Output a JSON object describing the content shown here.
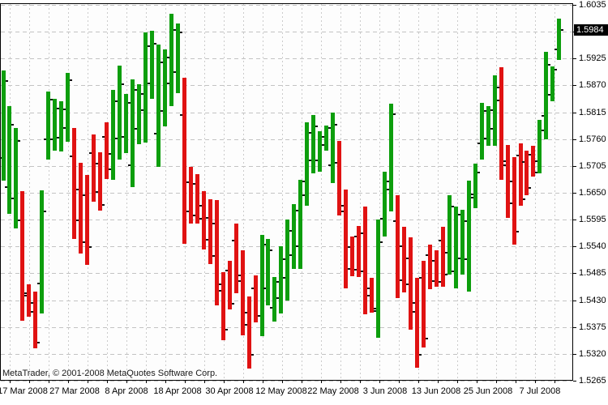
{
  "watermark": "MetaTrader, © 2001-2008 MetaQuotes Software Corp.",
  "price_axis": {
    "side": "right",
    "current_price": "1.5984",
    "current_price_value": 1.5984,
    "max": 1.6035,
    "min": 1.5265,
    "step": 0.0055,
    "gridline_levels": [
      1.6035,
      1.598,
      1.5925,
      1.587,
      1.5815,
      1.576,
      1.5705,
      1.565,
      1.5595,
      1.554,
      1.5485,
      1.543,
      1.5375,
      1.532,
      1.5265
    ],
    "visible_labels": [
      "1.6035",
      "1.5925",
      "1.5870",
      "1.5815",
      "1.5760",
      "1.5705",
      "1.5650",
      "1.5595",
      "1.5540",
      "1.5485",
      "1.5430",
      "1.5375",
      "1.5320",
      "1.5265"
    ]
  },
  "time_axis": {
    "labels": [
      {
        "text": "17 Mar 2008",
        "bar_index": 3
      },
      {
        "text": "27 Mar 2008",
        "bar_index": 11
      },
      {
        "text": "8 Apr 2008",
        "bar_index": 19
      },
      {
        "text": "18 Apr 2008",
        "bar_index": 27
      },
      {
        "text": "30 Apr 2008",
        "bar_index": 35
      },
      {
        "text": "12 May 2008",
        "bar_index": 43
      },
      {
        "text": "22 May 2008",
        "bar_index": 51
      },
      {
        "text": "3 Jun 2008",
        "bar_index": 59
      },
      {
        "text": "13 Jun 2008",
        "bar_index": 67
      },
      {
        "text": "25 Jun 2008",
        "bar_index": 75
      },
      {
        "text": "7 Jul 2008",
        "bar_index": 83
      }
    ]
  },
  "chart_data": {
    "type": "bar",
    "subtype": "ohlc-bars",
    "up_color": "#0d9e0d",
    "down_color": "#e01212",
    "grid": true,
    "legend": false,
    "ylim": [
      1.5265,
      1.6035
    ],
    "columns": [
      "high",
      "low",
      "direction"
    ],
    "bars": [
      [
        1.5901,
        1.5676,
        "up"
      ],
      [
        1.5827,
        1.5607,
        "up"
      ],
      [
        1.5782,
        1.5577,
        "up"
      ],
      [
        1.5653,
        1.5387,
        "down"
      ],
      [
        1.5462,
        1.5396,
        "down"
      ],
      [
        1.5447,
        1.5331,
        "down"
      ],
      [
        1.5655,
        1.5402,
        "up"
      ],
      [
        1.5858,
        1.5719,
        "up"
      ],
      [
        1.5843,
        1.5736,
        "up"
      ],
      [
        1.5837,
        1.5734,
        "up"
      ],
      [
        1.5895,
        1.5754,
        "up"
      ],
      [
        1.5782,
        1.5554,
        "down"
      ],
      [
        1.5711,
        1.5525,
        "down"
      ],
      [
        1.5687,
        1.5503,
        "down"
      ],
      [
        1.5769,
        1.5632,
        "down"
      ],
      [
        1.5733,
        1.5614,
        "down"
      ],
      [
        1.5794,
        1.5678,
        "down"
      ],
      [
        1.586,
        1.5675,
        "up"
      ],
      [
        1.5911,
        1.5718,
        "up"
      ],
      [
        1.5852,
        1.5731,
        "up"
      ],
      [
        1.5883,
        1.5663,
        "up"
      ],
      [
        1.5873,
        1.5751,
        "up"
      ],
      [
        1.5979,
        1.5753,
        "up"
      ],
      [
        1.5982,
        1.5842,
        "up"
      ],
      [
        1.5954,
        1.5703,
        "up"
      ],
      [
        1.5943,
        1.5786,
        "up"
      ],
      [
        1.6017,
        1.5827,
        "up"
      ],
      [
        1.5997,
        1.5855,
        "up"
      ],
      [
        1.5886,
        1.5546,
        "down"
      ],
      [
        1.5703,
        1.5587,
        "down"
      ],
      [
        1.5688,
        1.5587,
        "down"
      ],
      [
        1.5653,
        1.5533,
        "down"
      ],
      [
        1.5637,
        1.5505,
        "down"
      ],
      [
        1.5635,
        1.542,
        "down"
      ],
      [
        1.5488,
        1.5348,
        "down"
      ],
      [
        1.5511,
        1.5412,
        "down"
      ],
      [
        1.5587,
        1.5445,
        "down"
      ],
      [
        1.5533,
        1.5358,
        "down"
      ],
      [
        1.5437,
        1.529,
        "down"
      ],
      [
        1.548,
        1.5384,
        "down"
      ],
      [
        1.5564,
        1.5356,
        "up"
      ],
      [
        1.5556,
        1.542,
        "up"
      ],
      [
        1.5478,
        1.5387,
        "up"
      ],
      [
        1.5541,
        1.5404,
        "up"
      ],
      [
        1.5596,
        1.543,
        "up"
      ],
      [
        1.5627,
        1.5495,
        "up"
      ],
      [
        1.5677,
        1.5495,
        "up"
      ],
      [
        1.5794,
        1.5623,
        "up"
      ],
      [
        1.5809,
        1.569,
        "up"
      ],
      [
        1.5776,
        1.5693,
        "up"
      ],
      [
        1.5788,
        1.5737,
        "up"
      ],
      [
        1.5814,
        1.567,
        "up"
      ],
      [
        1.5756,
        1.5604,
        "down"
      ],
      [
        1.5657,
        1.5454,
        "down"
      ],
      [
        1.5561,
        1.548,
        "down"
      ],
      [
        1.5582,
        1.5478,
        "down"
      ],
      [
        1.5622,
        1.5401,
        "down"
      ],
      [
        1.5475,
        1.5404,
        "down"
      ],
      [
        1.5596,
        1.5354,
        "up"
      ],
      [
        1.5693,
        1.5561,
        "up"
      ],
      [
        1.5833,
        1.5612,
        "up"
      ],
      [
        1.5645,
        1.5434,
        "down"
      ],
      [
        1.558,
        1.5445,
        "down"
      ],
      [
        1.5558,
        1.5368,
        "down"
      ],
      [
        1.5475,
        1.529,
        "down"
      ],
      [
        1.5511,
        1.5334,
        "down"
      ],
      [
        1.5544,
        1.5453,
        "down"
      ],
      [
        1.5532,
        1.5458,
        "down"
      ],
      [
        1.558,
        1.5458,
        "down"
      ],
      [
        1.5645,
        1.5483,
        "up"
      ],
      [
        1.5622,
        1.5455,
        "up"
      ],
      [
        1.5615,
        1.5483,
        "up"
      ],
      [
        1.5675,
        1.5447,
        "up"
      ],
      [
        1.571,
        1.5619,
        "up"
      ],
      [
        1.5835,
        1.5719,
        "up"
      ],
      [
        1.5827,
        1.5745,
        "up"
      ],
      [
        1.589,
        1.5745,
        "up"
      ],
      [
        1.5908,
        1.5677,
        "down"
      ],
      [
        1.5748,
        1.5599,
        "down"
      ],
      [
        1.5723,
        1.5543,
        "down"
      ],
      [
        1.5751,
        1.5624,
        "down"
      ],
      [
        1.5736,
        1.5644,
        "down"
      ],
      [
        1.5746,
        1.5683,
        "down"
      ],
      [
        1.5799,
        1.569,
        "up"
      ],
      [
        1.5939,
        1.5759,
        "up"
      ],
      [
        1.5909,
        1.5837,
        "up"
      ],
      [
        1.6007,
        1.5923,
        "up"
      ]
    ]
  }
}
